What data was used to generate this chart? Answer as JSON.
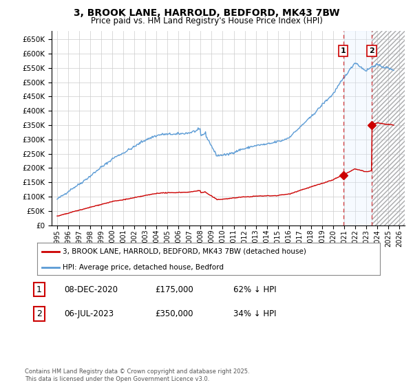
{
  "title": "3, BROOK LANE, HARROLD, BEDFORD, MK43 7BW",
  "subtitle": "Price paid vs. HM Land Registry's House Price Index (HPI)",
  "hpi_label": "HPI: Average price, detached house, Bedford",
  "property_label": "3, BROOK LANE, HARROLD, BEDFORD, MK43 7BW (detached house)",
  "legend1_date": "08-DEC-2020",
  "legend1_price": "£175,000",
  "legend1_hpi": "62% ↓ HPI",
  "legend2_date": "06-JUL-2023",
  "legend2_price": "£350,000",
  "legend2_hpi": "34% ↓ HPI",
  "sale1_year": 2020.92,
  "sale1_price": 175000,
  "sale2_year": 2023.5,
  "sale2_price": 350000,
  "ylim": [
    0,
    680000
  ],
  "yticks": [
    0,
    50000,
    100000,
    150000,
    200000,
    250000,
    300000,
    350000,
    400000,
    450000,
    500000,
    550000,
    600000,
    650000
  ],
  "xlim_start": 1994.5,
  "xlim_end": 2026.5,
  "hpi_color": "#5b9bd5",
  "property_color": "#cc0000",
  "vline_color": "#cc0000",
  "shade_color": "#ddeeff",
  "grid_color": "#cccccc",
  "background_color": "#ffffff",
  "copyright_text": "Contains HM Land Registry data © Crown copyright and database right 2025.\nThis data is licensed under the Open Government Licence v3.0.",
  "marker1_label": "1",
  "marker2_label": "2",
  "future_start": 2025.5
}
